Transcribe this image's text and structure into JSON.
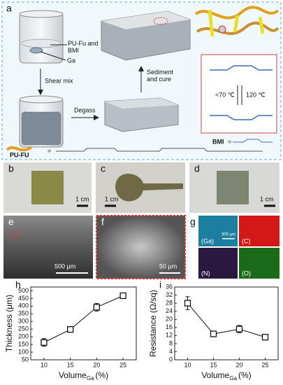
{
  "panels": {
    "a": {
      "label": "a",
      "mix_label": [
        "PU-Fu and",
        "BMI"
      ],
      "ga_label": "Ga",
      "shear": "Shear mix",
      "degass": "Degass",
      "sediment": [
        "Sediment",
        "and cure"
      ],
      "low_temp": "<70 ℃",
      "high_temp": "120 ℃",
      "bmi": "BMI",
      "bmi_eq": "=",
      "pufu": "PU-FU",
      "pufu_eq": "="
    },
    "b": {
      "label": "b",
      "scale": "1 cm"
    },
    "c": {
      "label": "c",
      "scale": "1 cm"
    },
    "d": {
      "label": "d",
      "scale": "1 cm"
    },
    "e": {
      "label": "e",
      "scale": "500 μm"
    },
    "f": {
      "label": "f",
      "scale": "50 μm"
    },
    "g": {
      "label": "g",
      "scale": "300 μm",
      "maps": [
        "(Ga)",
        "(C)",
        "(N)",
        "(O)"
      ]
    }
  },
  "chart_data": [
    {
      "type": "line",
      "label": "h",
      "ylabel": "Thickness (μm)",
      "xlabel": {
        "main": "Volume",
        "sub": "Ga",
        "unit": "(%)"
      },
      "x": [
        10,
        15,
        20,
        25
      ],
      "series": [
        {
          "color": "#111111",
          "values": [
            163,
            248,
            393,
            468
          ],
          "errors": [
            25,
            8,
            25,
            17
          ]
        }
      ],
      "xlim": [
        7.5,
        27.5
      ],
      "xticks": [
        10,
        15,
        20,
        25
      ],
      "ylim": [
        50,
        525
      ],
      "yticks": [
        50,
        100,
        150,
        200,
        250,
        300,
        350,
        400,
        450,
        500
      ]
    },
    {
      "type": "line",
      "label": "i",
      "ylabel": "Resistance (Ω/sq)",
      "xlabel": {
        "main": "Volume",
        "sub": "Ga",
        "unit": "(%)"
      },
      "x": [
        10,
        15,
        20,
        25
      ],
      "series": [
        {
          "color": "#111111",
          "values": [
            28,
            12.8,
            15.2,
            11.2
          ],
          "errors": [
            3.2,
            0.6,
            1.8,
            0.6
          ]
        }
      ],
      "xlim": [
        7.5,
        27.5
      ],
      "xticks": [
        10,
        15,
        20,
        25
      ],
      "ylim": [
        0,
        36
      ],
      "yticks": [
        0,
        4,
        8,
        12,
        16,
        20,
        24,
        28,
        32,
        36
      ]
    }
  ]
}
